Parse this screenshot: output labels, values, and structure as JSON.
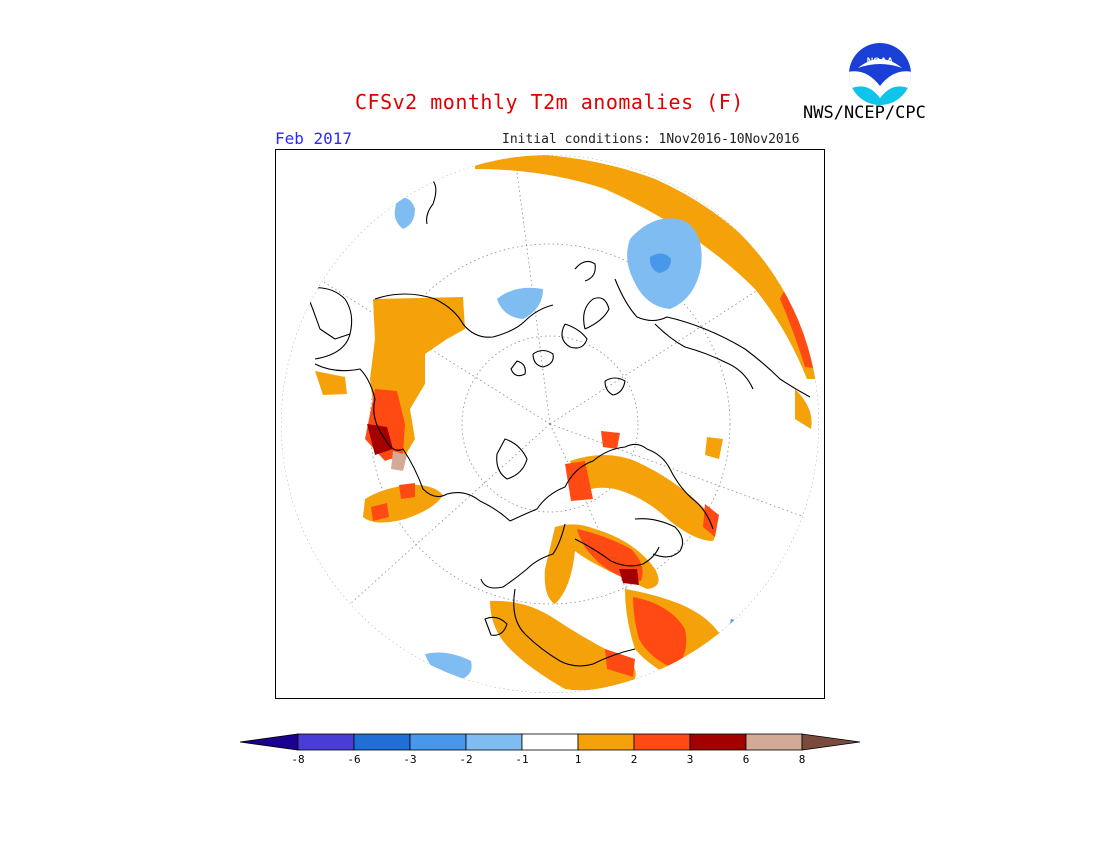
{
  "header": {
    "title": "CFSv2 monthly T2m anomalies (F)",
    "month": "Feb 2017",
    "initial_conditions": "Initial conditions: 1Nov2016-10Nov2016",
    "agency": "NWS/NCEP/CPC",
    "logo_text": "NOAA"
  },
  "colors": {
    "minus8_below": "#1c0090",
    "m8_m6": "#4a3cd6",
    "m6_m3": "#1f6fd6",
    "m3_m2": "#4797ea",
    "m2_m1": "#7ebcf2",
    "m1_1": "#ffffff",
    "p1_2": "#f5a20a",
    "p2_3": "#ff4a14",
    "p3_6": "#a40000",
    "p6_8": "#d3aa96",
    "above8": "#7a4b3c",
    "title": "#e00000",
    "month": "#2a2aff"
  },
  "colorbar": {
    "ticks": [
      "-8",
      "-6",
      "-3",
      "-2",
      "-1",
      "1",
      "2",
      "3",
      "6",
      "8"
    ]
  },
  "map": {
    "projection": "north-polar-stereographic",
    "features": [
      "coastlines",
      "graticule",
      "anomaly-shading"
    ]
  }
}
